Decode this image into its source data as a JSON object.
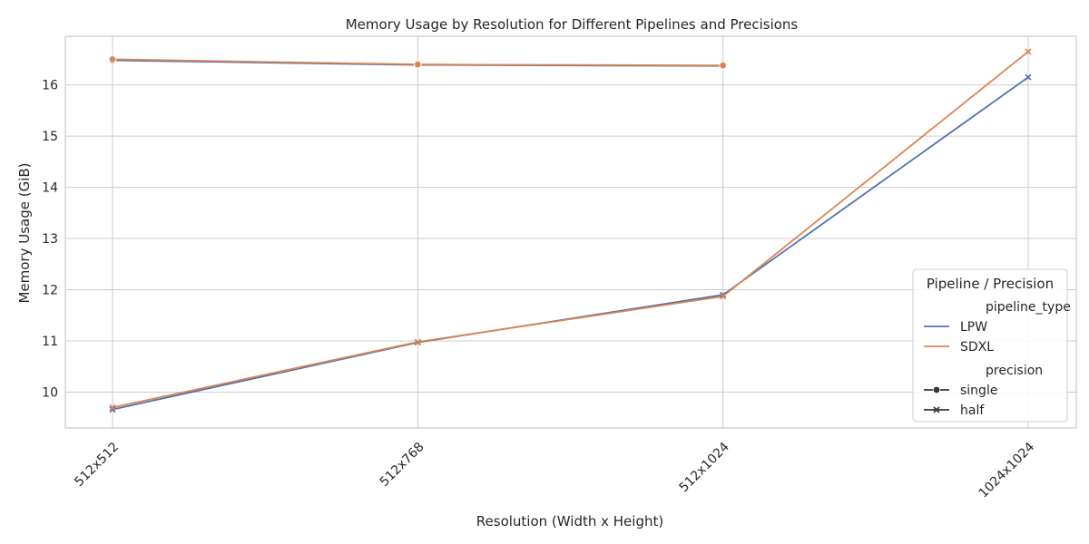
{
  "chart_data": {
    "type": "line",
    "title": "Memory Usage by Resolution for Different Pipelines and Precisions",
    "xlabel": "Resolution (Width x Height)",
    "ylabel": "Memory Usage (GiB)",
    "categories": [
      "512x512",
      "512x768",
      "512x1024",
      "1024x1024"
    ],
    "ylim": [
      9.3,
      16.95
    ],
    "yticks": [
      10,
      11,
      12,
      13,
      14,
      15,
      16
    ],
    "grid": true,
    "legend": {
      "title": "Pipeline / Precision",
      "placement": "lower-right",
      "hue_header": "pipeline_type",
      "style_header": "precision",
      "hue_entries": [
        {
          "label": "LPW",
          "color": "#4c72b0"
        },
        {
          "label": "SDXL",
          "color": "#dd8452"
        }
      ],
      "style_entries": [
        {
          "label": "single",
          "marker": "circle"
        },
        {
          "label": "half",
          "marker": "x"
        }
      ]
    },
    "series": [
      {
        "pipeline": "LPW",
        "precision": "single",
        "color": "#4c72b0",
        "marker": "circle",
        "values": [
          16.48,
          16.39,
          16.37,
          null
        ]
      },
      {
        "pipeline": "SDXL",
        "precision": "single",
        "color": "#dd8452",
        "marker": "circle",
        "values": [
          16.5,
          16.4,
          16.38,
          null
        ]
      },
      {
        "pipeline": "LPW",
        "precision": "half",
        "color": "#4c72b0",
        "marker": "x",
        "values": [
          9.66,
          10.97,
          11.9,
          16.15
        ]
      },
      {
        "pipeline": "SDXL",
        "precision": "half",
        "color": "#dd8452",
        "marker": "x",
        "values": [
          9.7,
          10.98,
          11.87,
          16.65
        ]
      }
    ]
  }
}
